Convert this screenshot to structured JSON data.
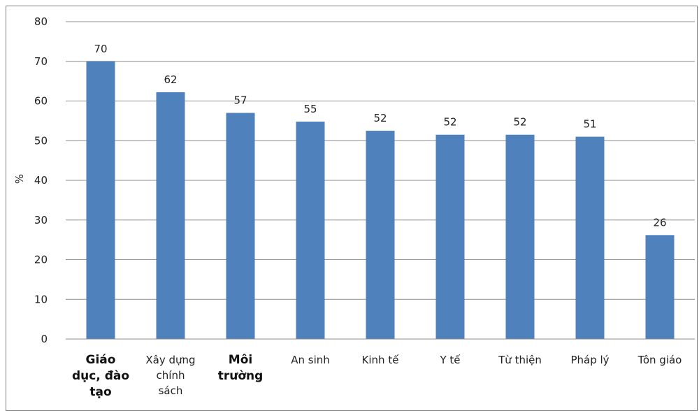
{
  "chart_data": {
    "type": "bar",
    "categories": [
      [
        "Giáo",
        "dục, đào",
        "tạo"
      ],
      [
        "Xây dựng",
        "chính",
        "sách"
      ],
      [
        "Môi",
        "trường"
      ],
      [
        "An sinh"
      ],
      [
        "Kinh tế"
      ],
      [
        "Y tế"
      ],
      [
        "Từ thiện"
      ],
      [
        "Pháp lý"
      ],
      [
        "Tôn giáo"
      ]
    ],
    "category_bold": [
      true,
      false,
      true,
      false,
      false,
      false,
      false,
      false,
      false
    ],
    "values": [
      70,
      62,
      57,
      55,
      52,
      52,
      52,
      51,
      26
    ],
    "plotted_values": [
      70,
      62.2,
      57,
      54.8,
      52.5,
      51.5,
      51.5,
      51,
      26.2
    ],
    "ylabel": "%",
    "ylim": [
      0,
      80
    ],
    "yticks": [
      0,
      10,
      20,
      30,
      40,
      50,
      60,
      70,
      80
    ],
    "grid": true,
    "bar_color": "#4f81bd"
  }
}
